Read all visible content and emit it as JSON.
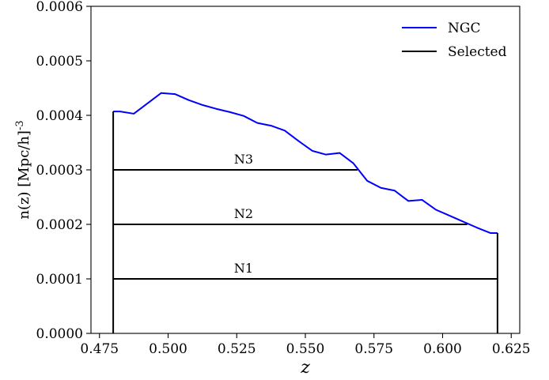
{
  "chart_data": {
    "type": "line",
    "xlabel": "z",
    "ylabel": "n(z) [Mpc/h]^-3",
    "xlim": [
      0.4719,
      0.6281
    ],
    "ylim": [
      0,
      0.0006
    ],
    "x_ticks": [
      "0.475",
      "0.500",
      "0.525",
      "0.550",
      "0.575",
      "0.600",
      "0.625"
    ],
    "x_tick_values": [
      0.475,
      0.5,
      0.525,
      0.55,
      0.575,
      0.6,
      0.625
    ],
    "y_ticks": [
      "0.0000",
      "0.0001",
      "0.0002",
      "0.0003",
      "0.0004",
      "0.0005",
      "0.0006"
    ],
    "y_tick_values": [
      0,
      0.0001,
      0.0002,
      0.0003,
      0.0004,
      0.0005,
      0.0006
    ],
    "grid": false,
    "legend_position": "top-right",
    "series": [
      {
        "name": "NGC",
        "color": "#0000ff",
        "x": [
          0.48,
          0.4825,
          0.4875,
          0.4925,
          0.4975,
          0.5025,
          0.5075,
          0.5125,
          0.5175,
          0.5225,
          0.5275,
          0.5325,
          0.5375,
          0.5425,
          0.5475,
          0.5525,
          0.5575,
          0.5625,
          0.5675,
          0.5725,
          0.5775,
          0.5825,
          0.5875,
          0.5925,
          0.5975,
          0.6025,
          0.6075,
          0.6125,
          0.6175,
          0.62
        ],
        "y": [
          0.000407,
          0.000407,
          0.000403,
          0.000422,
          0.000441,
          0.000439,
          0.000428,
          0.000419,
          0.000412,
          0.000406,
          0.000399,
          0.000386,
          0.000381,
          0.000372,
          0.000353,
          0.000335,
          0.000328,
          0.000331,
          0.000312,
          0.00028,
          0.000267,
          0.000262,
          0.000243,
          0.000245,
          0.000227,
          0.000216,
          0.000205,
          0.000194,
          0.000184,
          0.000184
        ]
      },
      {
        "name": "Selected",
        "color": "#000000",
        "segments": [
          {
            "x": [
              0.48,
              0.48
            ],
            "y": [
              0,
              0.000407
            ]
          },
          {
            "x": [
              0.62,
              0.62
            ],
            "y": [
              0,
              0.000184
            ]
          },
          {
            "x": [
              0.48,
              0.62
            ],
            "y": [
              0.0001,
              0.0001
            ]
          },
          {
            "x": [
              0.48,
              0.609
            ],
            "y": [
              0.0002,
              0.0002
            ]
          },
          {
            "x": [
              0.48,
              0.569
            ],
            "y": [
              0.0003,
              0.0003
            ]
          }
        ]
      }
    ],
    "annotations": [
      {
        "text": "N1",
        "x": 0.5275,
        "y": 0.0001
      },
      {
        "text": "N2",
        "x": 0.5275,
        "y": 0.0002
      },
      {
        "text": "N3",
        "x": 0.5275,
        "y": 0.0003
      }
    ],
    "legend": [
      {
        "label": "NGC",
        "color": "#0000ff"
      },
      {
        "label": "Selected",
        "color": "#000000"
      }
    ]
  }
}
